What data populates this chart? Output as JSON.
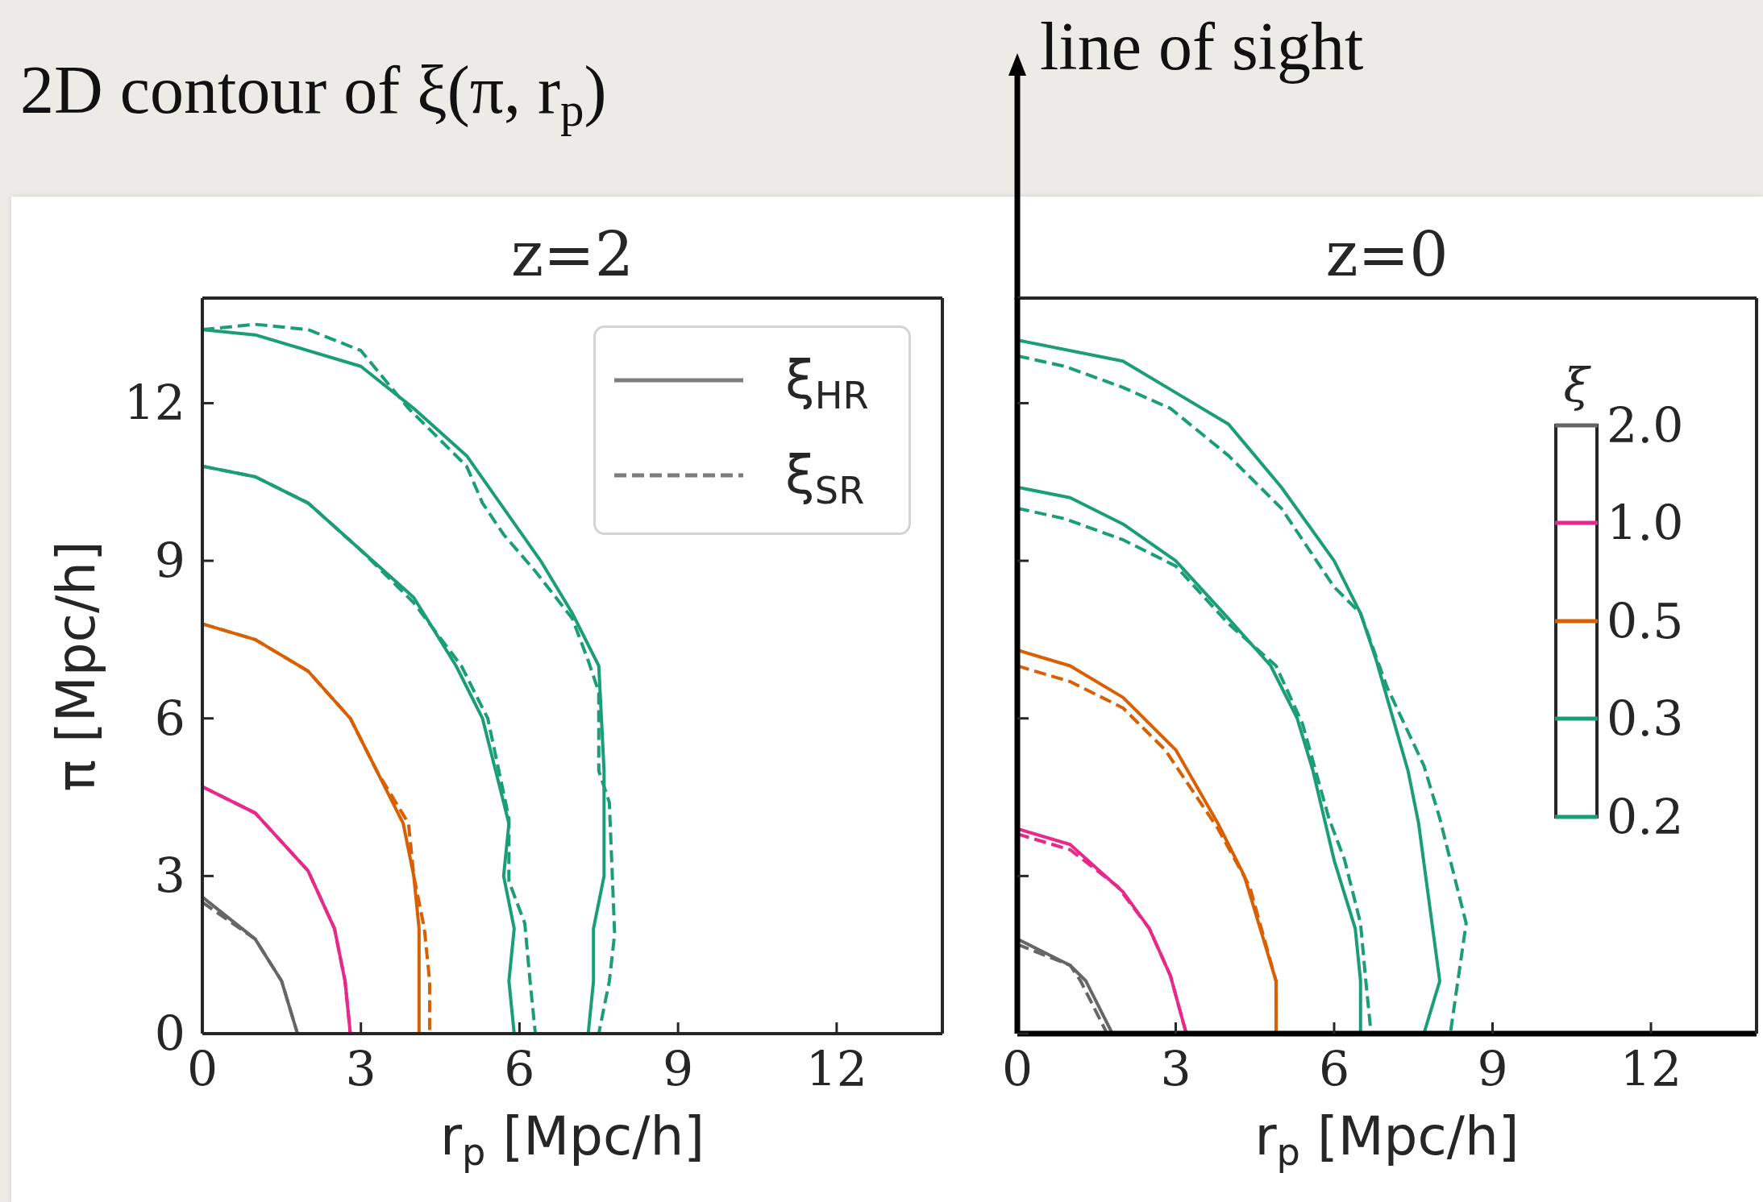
{
  "chart_data": [
    {
      "type": "line",
      "title": "z=2",
      "xlabel": "r$_{p}$ [Mpc/h]",
      "ylabel": "π [Mpc/h]",
      "annotations": [
        "2D contour of ξ(π, r$_{p}$)"
      ],
      "xlim": [
        0,
        14
      ],
      "ylim": [
        0,
        14
      ],
      "xticks": [
        0,
        3,
        6,
        9,
        12
      ],
      "yticks": [
        0,
        3,
        6,
        9,
        12
      ],
      "legend": "top right",
      "series": [
        {
          "name": "ξ$_{HR}$",
          "color": "#666666",
          "line_style": "solid",
          "x": [
            0,
            1,
            1.5,
            1.8
          ],
          "values": [
            2.6,
            1.8,
            1.0,
            0
          ]
        },
        {
          "name": "ξ$_{SR}$",
          "color": "#666666",
          "line_style": "dashed",
          "x": [
            0,
            1,
            1.5,
            1.8
          ],
          "values": [
            2.5,
            1.8,
            1.0,
            0
          ]
        },
        {
          "color": "#e7298a",
          "line_style": "solid",
          "x": [
            0,
            1,
            2,
            2.5,
            2.7,
            2.8
          ],
          "values": [
            4.7,
            4.2,
            3.1,
            2.0,
            1.0,
            0
          ]
        },
        {
          "color": "#e7298a",
          "line_style": "dashed",
          "x": [
            0,
            1,
            2,
            2.5,
            2.7,
            2.8
          ],
          "values": [
            4.7,
            4.2,
            3.1,
            2.0,
            1.0,
            0
          ]
        },
        {
          "color": "#d95f02",
          "line_style": "solid",
          "x": [
            0,
            1,
            2,
            2.8,
            3.3,
            3.8,
            4.0,
            4.1,
            4.1,
            4.1
          ],
          "values": [
            7.8,
            7.5,
            6.9,
            6.0,
            5.0,
            4.0,
            3.0,
            2.0,
            1.0,
            0
          ]
        },
        {
          "color": "#d95f02",
          "line_style": "dashed",
          "x": [
            0,
            1,
            2,
            2.8,
            3.3,
            3.9,
            4.0,
            4.2,
            4.3,
            4.3
          ],
          "values": [
            7.8,
            7.5,
            6.9,
            6.0,
            5.0,
            4.0,
            3.0,
            2.0,
            1.0,
            0
          ]
        },
        {
          "color": "#1b9e77",
          "line_style": "solid",
          "x": [
            0,
            1,
            2,
            3,
            4,
            4.8,
            5.3,
            5.8,
            5.7,
            5.9,
            5.8,
            5.9
          ],
          "values": [
            10.8,
            10.6,
            10.1,
            9.2,
            8.3,
            7.0,
            6.0,
            4.0,
            3.0,
            2.0,
            1.0,
            0
          ]
        },
        {
          "color": "#1b9e77",
          "line_style": "dashed",
          "x": [
            0,
            1,
            2,
            3,
            4,
            4.9,
            5.4,
            5.8,
            5.8,
            6.1,
            6.2,
            6.3
          ],
          "values": [
            10.8,
            10.6,
            10.1,
            9.2,
            8.2,
            7.0,
            6.0,
            4.1,
            2.9,
            2.1,
            1.0,
            0
          ]
        },
        {
          "color": "#1b9e77",
          "line_style": "solid",
          "x": [
            0,
            1,
            3,
            4,
            5,
            5.7,
            6.4,
            7.0,
            7.5,
            7.6,
            7.6,
            7.4,
            7.4,
            7.3
          ],
          "values": [
            13.4,
            13.3,
            12.7,
            11.9,
            11.0,
            10.0,
            9.0,
            8.0,
            7.0,
            5.0,
            3.0,
            2.0,
            1.0,
            0
          ]
        },
        {
          "color": "#1b9e77",
          "line_style": "dashed",
          "x": [
            0,
            1,
            2,
            3,
            3.9,
            5.0,
            5.3,
            5.7,
            6.3,
            7.0,
            7.3,
            7.5,
            7.5,
            7.7,
            7.8,
            7.7,
            7.5
          ],
          "values": [
            13.4,
            13.5,
            13.4,
            13.0,
            11.9,
            10.8,
            10.1,
            9.5,
            8.8,
            7.9,
            7.1,
            6.5,
            5.0,
            4.4,
            1.9,
            1.0,
            0
          ]
        }
      ]
    },
    {
      "type": "line",
      "title": "z=0",
      "xlabel": "r$_{p}$ [Mpc/h]",
      "annotations": [
        "line of sight"
      ],
      "xlim": [
        0,
        14
      ],
      "ylim": [
        0,
        14
      ],
      "xticks": [
        0,
        3,
        6,
        9,
        12
      ],
      "yticks": [
        0,
        3,
        6,
        9,
        12
      ],
      "tick_labels": "x",
      "legend": "right",
      "legend_title": "ξ",
      "series": [
        {
          "name": "2.0",
          "color": "#666666",
          "line_style": "solid",
          "x": [
            0,
            1,
            1.3,
            1.8
          ],
          "values": [
            1.8,
            1.3,
            1.0,
            0
          ]
        },
        {
          "color": "#666666",
          "line_style": "dashed",
          "x": [
            0,
            1,
            1.2,
            1.7
          ],
          "values": [
            1.7,
            1.3,
            1.0,
            0
          ]
        },
        {
          "name": "1.0",
          "color": "#e7298a",
          "line_style": "solid",
          "x": [
            0,
            1,
            2,
            2.5,
            2.9,
            3.2
          ],
          "values": [
            3.9,
            3.6,
            2.7,
            2.0,
            1.1,
            0
          ]
        },
        {
          "color": "#e7298a",
          "line_style": "dashed",
          "x": [
            0,
            1,
            1.9,
            2.5,
            2.9,
            3.2
          ],
          "values": [
            3.8,
            3.5,
            2.8,
            2.0,
            1.1,
            0
          ]
        },
        {
          "name": "0.5",
          "color": "#d95f02",
          "line_style": "solid",
          "x": [
            0,
            1,
            2,
            3,
            3.8,
            4.3,
            4.9,
            4.9
          ],
          "values": [
            7.3,
            7.0,
            6.4,
            5.4,
            4.0,
            3.0,
            1.0,
            0
          ]
        },
        {
          "color": "#d95f02",
          "line_style": "dashed",
          "x": [
            0,
            1,
            2,
            2.8,
            3.8,
            4.4,
            4.9,
            4.9
          ],
          "values": [
            7.0,
            6.7,
            6.2,
            5.4,
            3.9,
            2.8,
            1.0,
            0
          ]
        },
        {
          "name": "0.3",
          "color": "#1b9e77",
          "line_style": "solid",
          "x": [
            0,
            1,
            2,
            3,
            4,
            4.8,
            5.3,
            5.6,
            6.0,
            6.4,
            6.5,
            6.5
          ],
          "values": [
            10.4,
            10.2,
            9.7,
            9.0,
            7.9,
            7.0,
            6.0,
            5.0,
            3.3,
            2.0,
            1.0,
            0
          ]
        },
        {
          "color": "#1b9e77",
          "line_style": "dashed",
          "x": [
            0,
            0.9,
            2,
            3,
            4,
            4.9,
            5.4,
            5.9,
            6.2,
            6.5,
            6.6,
            6.7
          ],
          "values": [
            10.0,
            9.8,
            9.4,
            8.9,
            7.8,
            7.0,
            5.9,
            4.1,
            3.3,
            2.1,
            1.0,
            0
          ]
        },
        {
          "name": "0.2",
          "color": "#1b9e77",
          "line_style": "solid",
          "x": [
            0,
            2,
            3,
            4,
            4.5,
            5,
            6,
            6.5,
            6.8,
            7.0,
            7.4,
            7.6,
            8.0,
            7.7
          ],
          "values": [
            13.2,
            12.8,
            12.2,
            11.6,
            11.0,
            10.4,
            9.0,
            8.0,
            7.1,
            6.4,
            5.0,
            4.0,
            1.0,
            0
          ]
        },
        {
          "color": "#1b9e77",
          "line_style": "dashed",
          "x": [
            0,
            0.9,
            2,
            2.9,
            4,
            5,
            6,
            6.5,
            7.0,
            7.7,
            8.0,
            8.5,
            8.2
          ],
          "values": [
            12.9,
            12.7,
            12.3,
            11.9,
            11.0,
            10.0,
            8.5,
            8.0,
            6.6,
            5.1,
            4.1,
            2.1,
            0
          ]
        }
      ]
    }
  ]
}
